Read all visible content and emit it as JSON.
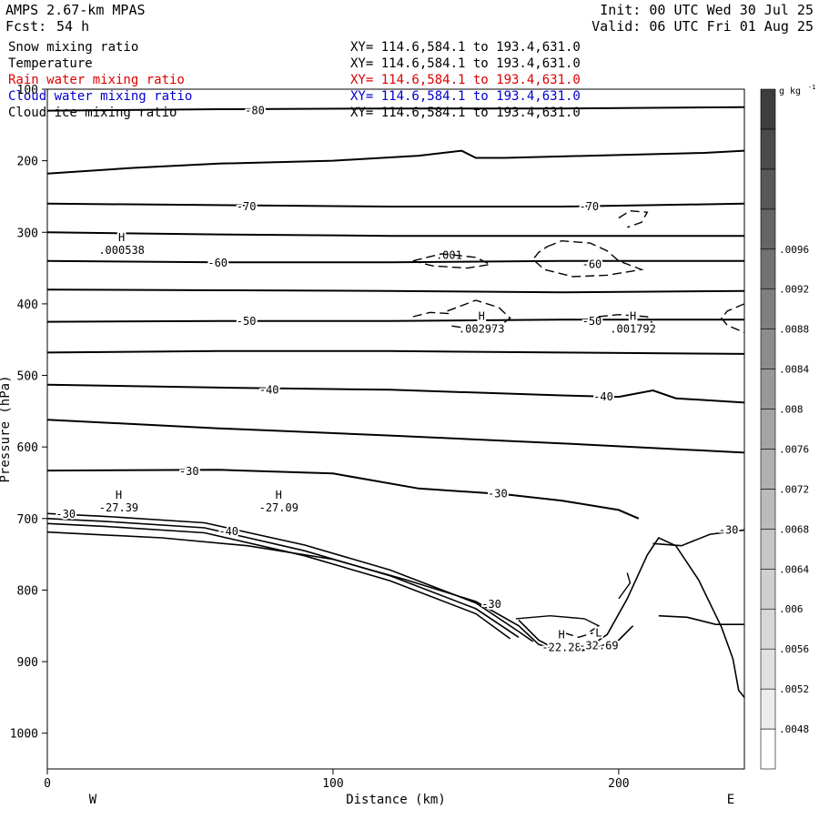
{
  "header": {
    "model": "AMPS 2.67-km MPAS",
    "forecast_label": "Fcst:",
    "forecast_hours": "54 h",
    "init": "Init: 00 UTC Wed 30 Jul 25",
    "valid": "Valid: 06 UTC Fri 01 Aug 25"
  },
  "legend": [
    {
      "field": "Snow mixing ratio",
      "xy": "XY= 114.6,584.1 to 193.4,631.0",
      "color": "#000000"
    },
    {
      "field": "Temperature",
      "xy": "XY= 114.6,584.1 to 193.4,631.0",
      "color": "#000000"
    },
    {
      "field": "Rain water mixing ratio",
      "xy": "XY= 114.6,584.1 to 193.4,631.0",
      "color": "#dd0000"
    },
    {
      "field": "Cloud water mixing ratio",
      "xy": "XY= 114.6,584.1 to 193.4,631.0",
      "color": "#0000cc"
    },
    {
      "field": "Cloud ice mixing ratio",
      "xy": "XY= 114.6,584.1 to 193.4,631.0",
      "color": "#000000"
    }
  ],
  "chart_data": {
    "type": "line",
    "subtype": "vertical cross-section contour plot",
    "xlabel": "Distance (km)",
    "ylabel": "Pressure (hPa)",
    "xlim": [
      0,
      244
    ],
    "ylim": [
      100,
      1050
    ],
    "y_inverted": true,
    "x_ticks": [
      0,
      100,
      200
    ],
    "y_ticks": [
      100,
      200,
      300,
      400,
      500,
      600,
      700,
      800,
      900,
      1000
    ],
    "x_end_labels": {
      "left": "W",
      "right": "E"
    },
    "colorbar": {
      "unit": "g kg",
      "unit_exponent": "-1",
      "tick_labels": [
        ".0048",
        ".0052",
        ".0056",
        ".006",
        ".0064",
        ".0068",
        ".0072",
        ".0076",
        ".008",
        ".0084",
        ".0088",
        ".0092",
        ".0096"
      ],
      "colors": [
        "#ffffff",
        "#ececec",
        "#e1e1e1",
        "#d8d8d8",
        "#cfcfcf",
        "#c6c6c6",
        "#bbbbbb",
        "#b0b0b0",
        "#a4a4a4",
        "#989898",
        "#8c8c8c",
        "#7f7f7f",
        "#727272",
        "#656565",
        "#585858",
        "#4b4b4b",
        "#3e3e3e"
      ]
    },
    "temperature_isotherms": [
      {
        "label": "-80",
        "points": [
          [
            0,
            130
          ],
          [
            60,
            128
          ],
          [
            120,
            127
          ],
          [
            180,
            127
          ],
          [
            244,
            125
          ]
        ]
      },
      {
        "label": "",
        "points": [
          [
            0,
            218
          ],
          [
            30,
            210
          ],
          [
            60,
            204
          ],
          [
            100,
            200
          ],
          [
            130,
            193
          ],
          [
            145,
            186
          ],
          [
            150,
            196
          ],
          [
            160,
            196
          ],
          [
            190,
            193
          ],
          [
            230,
            189
          ],
          [
            244,
            186
          ]
        ]
      },
      {
        "label": "-70",
        "points": [
          [
            0,
            260
          ],
          [
            60,
            262
          ],
          [
            120,
            264
          ],
          [
            180,
            264
          ],
          [
            244,
            260
          ]
        ]
      },
      {
        "label": "",
        "points": [
          [
            0,
            300
          ],
          [
            60,
            303
          ],
          [
            120,
            305
          ],
          [
            180,
            305
          ],
          [
            244,
            305
          ]
        ]
      },
      {
        "label": "-60",
        "points": [
          [
            0,
            340
          ],
          [
            60,
            342
          ],
          [
            120,
            342
          ],
          [
            180,
            340
          ],
          [
            244,
            340
          ]
        ]
      },
      {
        "label": "",
        "points": [
          [
            0,
            380
          ],
          [
            60,
            381
          ],
          [
            120,
            382
          ],
          [
            180,
            384
          ],
          [
            244,
            382
          ]
        ]
      },
      {
        "label": "-50",
        "points": [
          [
            0,
            425
          ],
          [
            60,
            424
          ],
          [
            120,
            424
          ],
          [
            180,
            422
          ],
          [
            244,
            422
          ]
        ]
      },
      {
        "label": "",
        "points": [
          [
            0,
            468
          ],
          [
            60,
            466
          ],
          [
            120,
            466
          ],
          [
            180,
            468
          ],
          [
            244,
            470
          ]
        ]
      },
      {
        "label": "-40",
        "points": [
          [
            0,
            513
          ],
          [
            60,
            517
          ],
          [
            120,
            520
          ],
          [
            180,
            528
          ],
          [
            200,
            530
          ],
          [
            212,
            521
          ],
          [
            220,
            532
          ],
          [
            244,
            538
          ]
        ]
      },
      {
        "label": "",
        "points": [
          [
            0,
            562
          ],
          [
            60,
            574
          ],
          [
            120,
            584
          ],
          [
            180,
            595
          ],
          [
            244,
            608
          ]
        ]
      },
      {
        "label": "-30",
        "points": [
          [
            0,
            633
          ],
          [
            60,
            632
          ],
          [
            100,
            637
          ],
          [
            130,
            658
          ],
          [
            160,
            666
          ],
          [
            180,
            675
          ],
          [
            200,
            688
          ],
          [
            207,
            700
          ]
        ]
      }
    ],
    "low_level_isotherms": [
      {
        "label": "-30",
        "points": [
          [
            0,
            693
          ],
          [
            20,
            697
          ],
          [
            55,
            706
          ],
          [
            90,
            737
          ],
          [
            120,
            772
          ],
          [
            150,
            818
          ],
          [
            165,
            858
          ],
          [
            170,
            872
          ]
        ]
      },
      {
        "label": "",
        "points": [
          [
            0,
            700
          ],
          [
            20,
            704
          ],
          [
            55,
            713
          ],
          [
            90,
            745
          ],
          [
            120,
            780
          ],
          [
            150,
            826
          ],
          [
            165,
            866
          ]
        ]
      },
      {
        "label": "-40",
        "points": [
          [
            0,
            707
          ],
          [
            20,
            711
          ],
          [
            55,
            720
          ],
          [
            90,
            752
          ],
          [
            120,
            787
          ],
          [
            150,
            833
          ],
          [
            162,
            868
          ]
        ]
      },
      {
        "label": "",
        "points": [
          [
            0,
            719
          ],
          [
            40,
            727
          ],
          [
            70,
            738
          ],
          [
            100,
            757
          ],
          [
            125,
            785
          ],
          [
            150,
            816
          ],
          [
            165,
            850
          ],
          [
            172,
            876
          ],
          [
            180,
            886
          ],
          [
            190,
            883
          ],
          [
            200,
            870
          ],
          [
            205,
            850
          ]
        ]
      }
    ],
    "terrain_points": [
      [
        165,
        842
      ],
      [
        172,
        870
      ],
      [
        180,
        887
      ],
      [
        188,
        884
      ],
      [
        196,
        862
      ],
      [
        203,
        812
      ],
      [
        210,
        751
      ],
      [
        214,
        727
      ],
      [
        220,
        738
      ],
      [
        228,
        786
      ],
      [
        236,
        852
      ],
      [
        240,
        896
      ],
      [
        242,
        940
      ],
      [
        244,
        950
      ]
    ],
    "snow_contour": {
      "label": ".001",
      "points": [
        [
          128,
          340
        ],
        [
          138,
          330
        ],
        [
          150,
          335
        ],
        [
          155,
          345
        ],
        [
          147,
          350
        ],
        [
          135,
          347
        ]
      ]
    },
    "maxima_minima": [
      {
        "type": "H",
        "value": ".000538",
        "x": 26,
        "p": 330
      },
      {
        "type": "H",
        "value": ".002973",
        "x": 152,
        "p": 440
      },
      {
        "type": "H",
        "value": ".001792",
        "x": 205,
        "p": 440
      },
      {
        "type": "H",
        "value": "-27.39",
        "x": 25,
        "p": 690
      },
      {
        "type": "H",
        "value": "-27.09",
        "x": 81,
        "p": 690
      },
      {
        "type": "H",
        "value": "-22.28",
        "x": 180,
        "p": 885
      },
      {
        "type": "L",
        "value": "-32.69",
        "x": 193,
        "p": 883
      }
    ]
  }
}
